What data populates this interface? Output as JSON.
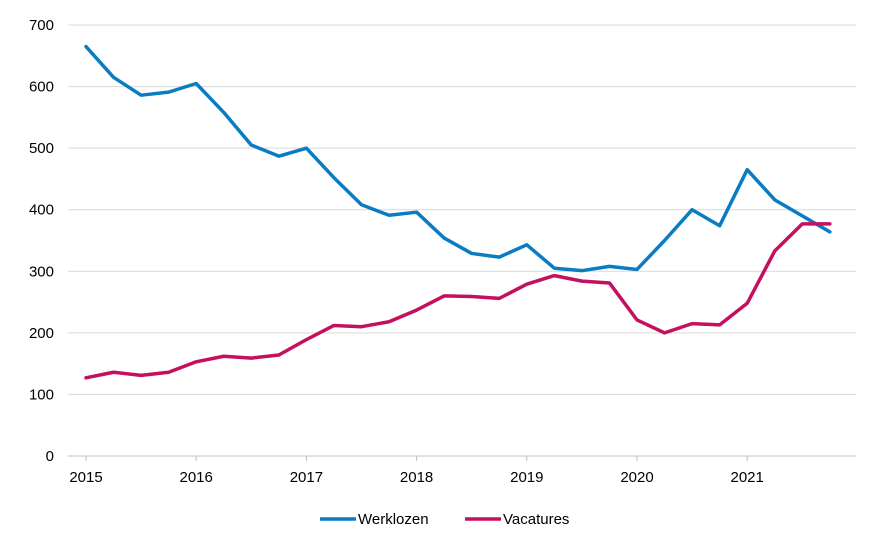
{
  "chart_data": {
    "type": "line",
    "title": "",
    "xlabel": "",
    "ylabel": "",
    "ylim": [
      0,
      700
    ],
    "yticks": [
      0,
      100,
      200,
      300,
      400,
      500,
      600,
      700
    ],
    "xticks": [
      "2015",
      "2016",
      "2017",
      "2018",
      "2019",
      "2020",
      "2021"
    ],
    "grid": true,
    "legend_position": "bottom",
    "x": [
      "2015-Q1",
      "2015-Q2",
      "2015-Q3",
      "2015-Q4",
      "2016-Q1",
      "2016-Q2",
      "2016-Q3",
      "2016-Q4",
      "2017-Q1",
      "2017-Q2",
      "2017-Q3",
      "2017-Q4",
      "2018-Q1",
      "2018-Q2",
      "2018-Q3",
      "2018-Q4",
      "2019-Q1",
      "2019-Q2",
      "2019-Q3",
      "2019-Q4",
      "2020-Q1",
      "2020-Q2",
      "2020-Q3",
      "2020-Q4",
      "2021-Q1",
      "2021-Q2",
      "2021-Q3",
      "2021-Q4"
    ],
    "series": [
      {
        "name": "Werklozen",
        "color": "#0a7dc2",
        "values": [
          665,
          615,
          586,
          591,
          605,
          558,
          505,
          487,
          500,
          452,
          408,
          391,
          396,
          354,
          329,
          323,
          343,
          305,
          301,
          308,
          303,
          350,
          400,
          374,
          465,
          416,
          390,
          364
        ]
      },
      {
        "name": "Vacatures",
        "color": "#c4105e",
        "values": [
          127,
          136,
          131,
          136,
          153,
          162,
          159,
          164,
          189,
          212,
          210,
          218,
          237,
          260,
          259,
          256,
          279,
          293,
          284,
          281,
          221,
          200,
          215,
          213,
          248,
          333,
          377,
          377
        ]
      }
    ]
  }
}
